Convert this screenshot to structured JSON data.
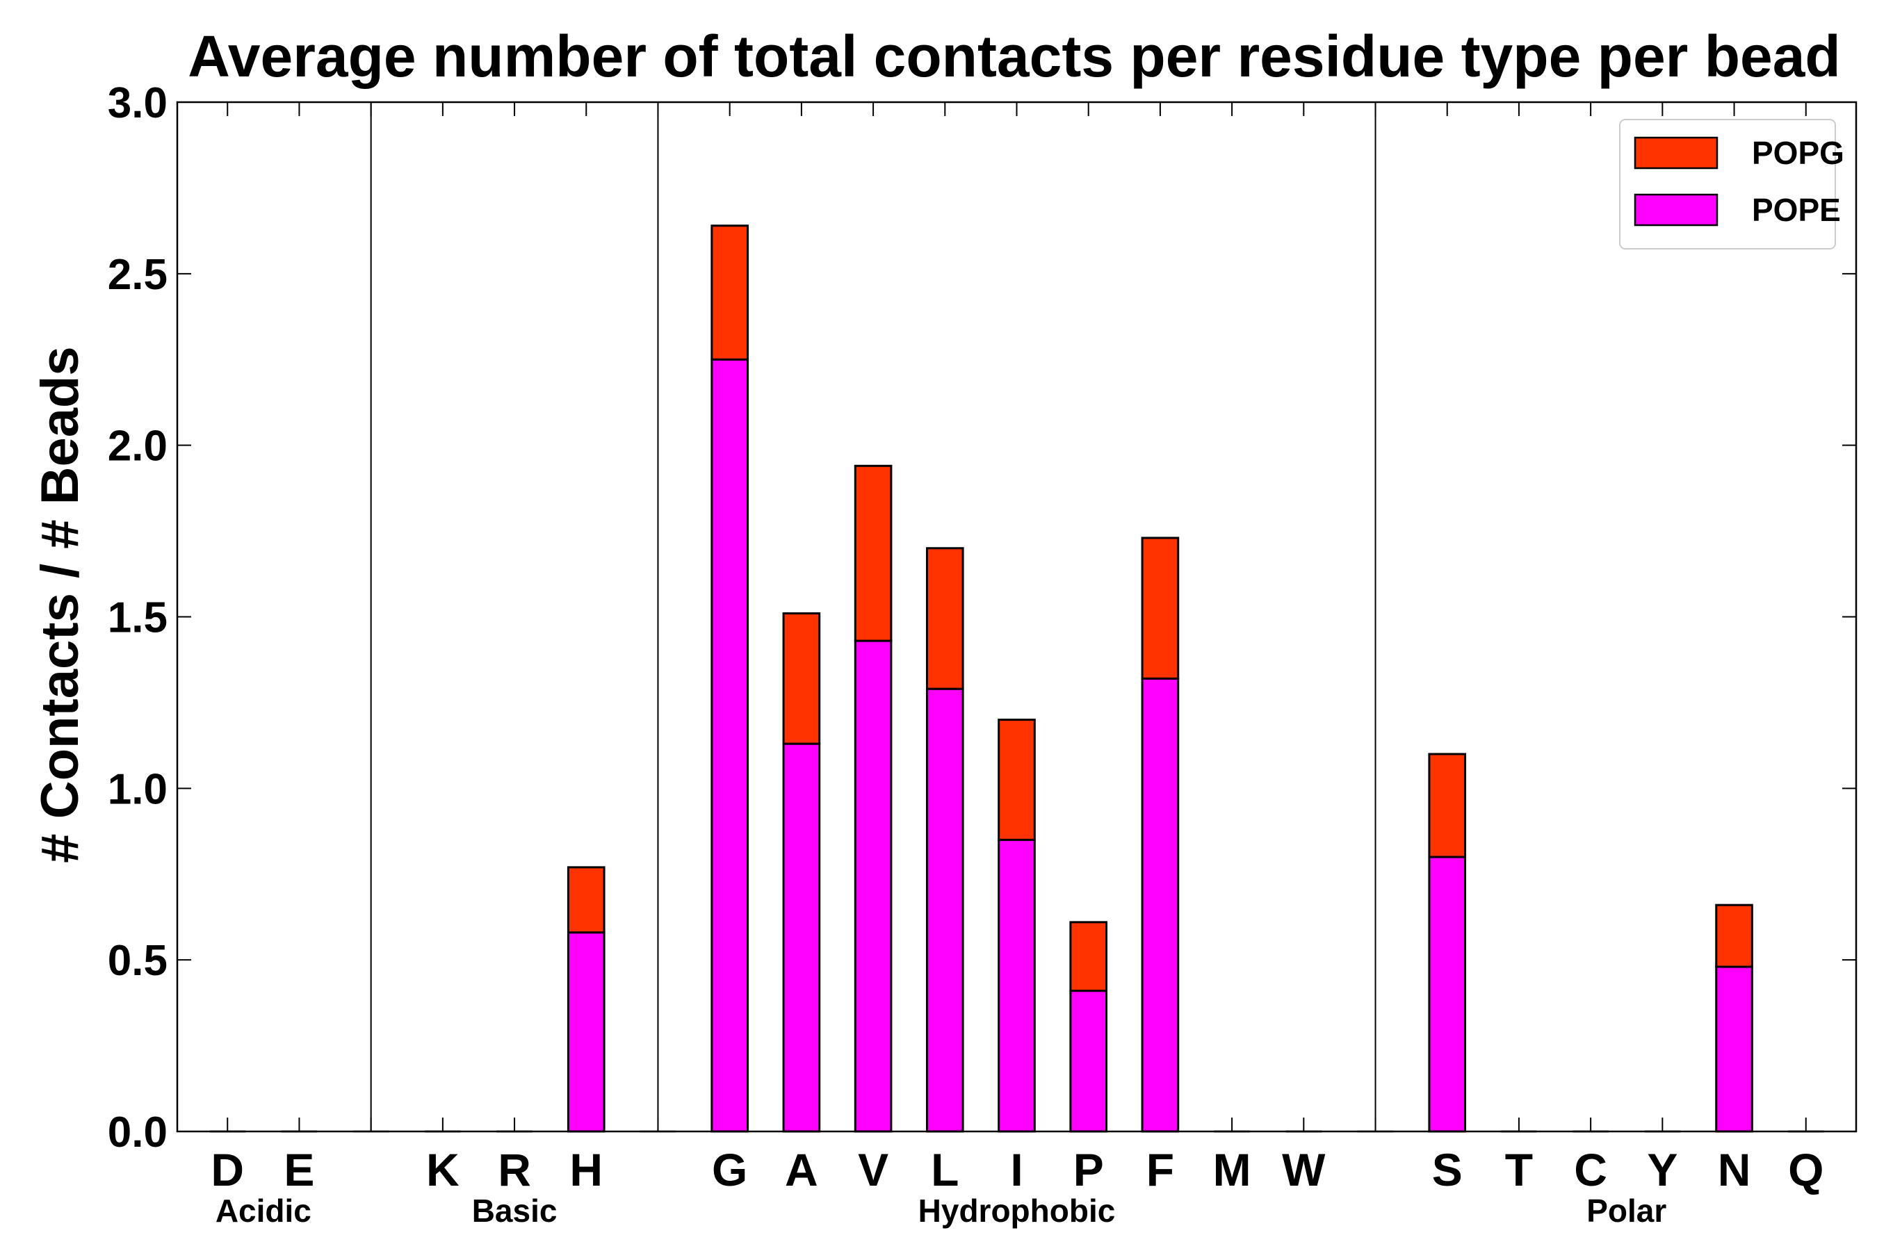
{
  "chart_data": {
    "type": "bar",
    "stacked": true,
    "title": "Average number of total contacts per residue type per bead",
    "xlabel": "",
    "ylabel": "# Contacts / # Beads",
    "ylim": [
      0,
      3.0
    ],
    "yticks": [
      "0.0",
      "0.5",
      "1.0",
      "1.5",
      "2.0",
      "2.5",
      "3.0"
    ],
    "ytick_values": [
      0,
      0.5,
      1.0,
      1.5,
      2.0,
      2.5,
      3.0
    ],
    "slots": [
      "D",
      "E",
      "",
      "K",
      "R",
      "H",
      "",
      "G",
      "A",
      "V",
      "L",
      "I",
      "P",
      "F",
      "M",
      "W",
      "",
      "S",
      "T",
      "C",
      "Y",
      "N",
      "Q"
    ],
    "categories": [
      "D",
      "E",
      "K",
      "R",
      "H",
      "G",
      "A",
      "V",
      "L",
      "I",
      "P",
      "F",
      "M",
      "W",
      "S",
      "T",
      "C",
      "Y",
      "N",
      "Q"
    ],
    "series": [
      {
        "name": "POPE",
        "color": "#ff00ff",
        "values": [
          0,
          0,
          0,
          0,
          0.58,
          2.25,
          1.13,
          1.43,
          1.29,
          0.85,
          0.41,
          1.32,
          0,
          0,
          0.8,
          0,
          0,
          0,
          0.48,
          0
        ]
      },
      {
        "name": "POPG",
        "color": "#ff3300",
        "values": [
          0,
          0,
          0,
          0,
          0.19,
          0.39,
          0.38,
          0.51,
          0.41,
          0.35,
          0.2,
          0.41,
          0,
          0,
          0.3,
          0,
          0,
          0,
          0.18,
          0
        ]
      }
    ],
    "groups": [
      {
        "name": "Acidic",
        "members": [
          "D",
          "E"
        ]
      },
      {
        "name": "Basic",
        "members": [
          "K",
          "R",
          "H"
        ]
      },
      {
        "name": "Hydrophobic",
        "members": [
          "G",
          "A",
          "V",
          "L",
          "I",
          "P",
          "F",
          "M",
          "W"
        ]
      },
      {
        "name": "Polar",
        "members": [
          "S",
          "T",
          "C",
          "Y",
          "N",
          "Q"
        ]
      }
    ],
    "legend": {
      "position": "top-right",
      "entries": [
        {
          "label": "POPG",
          "color": "#ff3300"
        },
        {
          "label": "POPE",
          "color": "#ff00ff"
        }
      ]
    },
    "grid": false
  }
}
